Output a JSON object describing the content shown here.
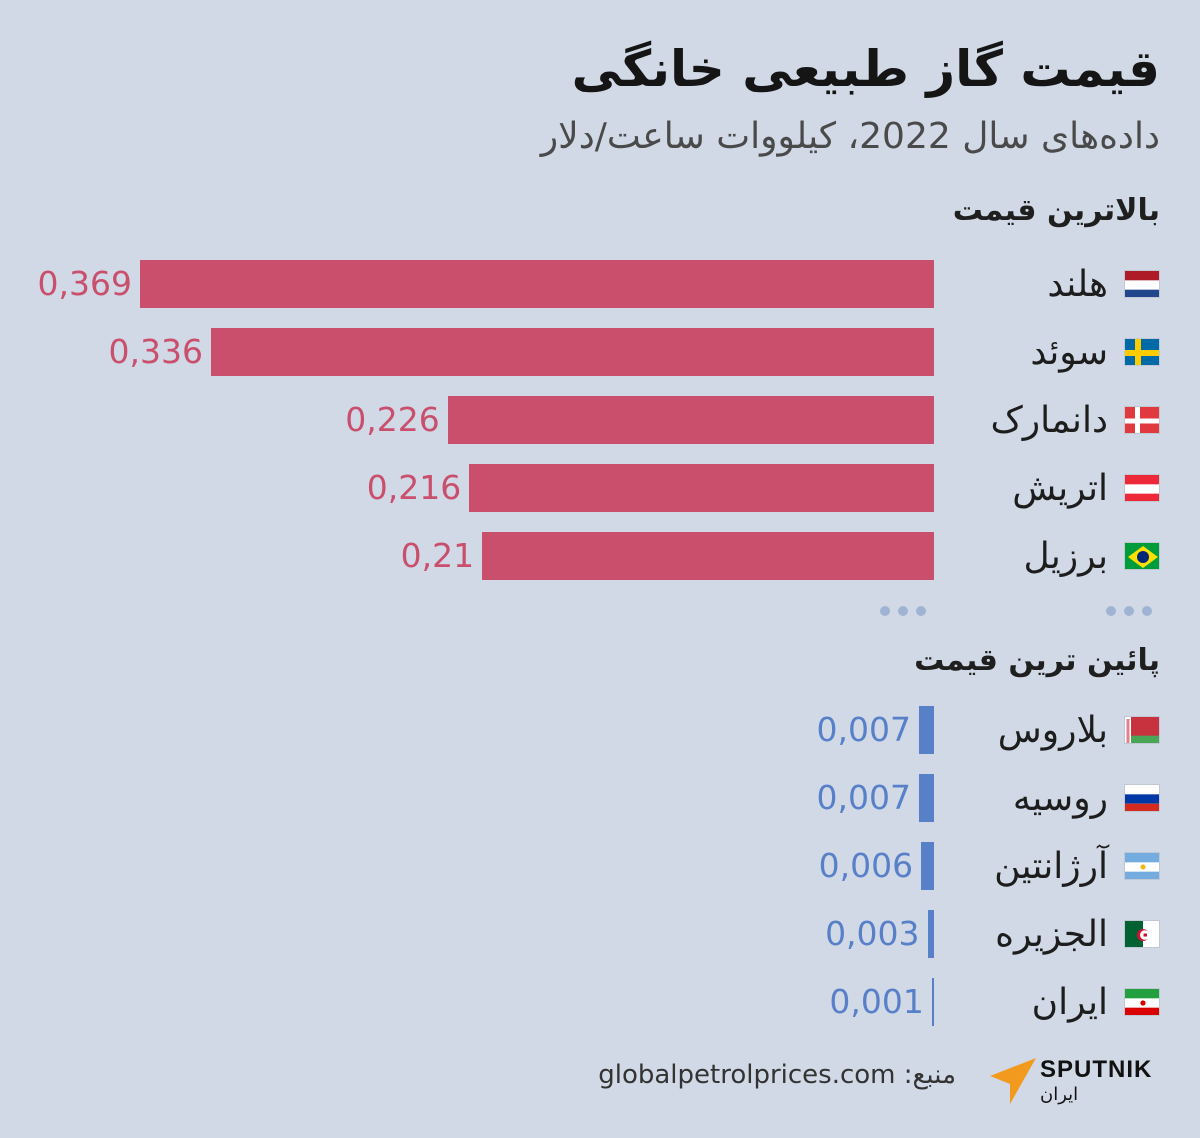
{
  "title": "قیمت گاز طبیعی خانگی",
  "subtitle": "داده‌های  سال 2022، کیلووات ساعت/دلار",
  "sections": {
    "top_label": "بالاترین قیمت",
    "bottom_label": "پائین ترین قیمت"
  },
  "chart_data": {
    "type": "bar",
    "orientation": "horizontal",
    "series": [
      {
        "name": "بالاترین قیمت",
        "color": "#c94f6d",
        "categories": [
          "هلند",
          "سوئد",
          "دانمارک",
          "اتریش",
          "برزیل"
        ],
        "values": [
          0.369,
          0.336,
          0.226,
          0.216,
          0.21
        ],
        "labels": [
          "0,369",
          "0,336",
          "0,226",
          "0,216",
          "0,21"
        ],
        "flags": [
          "netherlands-flag-icon",
          "sweden-flag-icon",
          "denmark-flag-icon",
          "austria-flag-icon",
          "brazil-flag-icon"
        ]
      },
      {
        "name": "پائین ترین قیمت",
        "color": "#5880c9",
        "categories": [
          "بلاروس",
          "روسیه",
          "آرژانتین",
          "الجزیره",
          "ایران"
        ],
        "values": [
          0.007,
          0.007,
          0.006,
          0.003,
          0.001
        ],
        "labels": [
          "0,007",
          "0,007",
          "0,006",
          "0,003",
          "0,001"
        ],
        "flags": [
          "belarus-flag-icon",
          "russia-flag-icon",
          "argentina-flag-icon",
          "algeria-flag-icon",
          "iran-flag-icon"
        ]
      }
    ]
  },
  "footer": {
    "source": "منبع:  globalpetrolprices.com",
    "logo_brand": "SPUTNIK",
    "logo_sub": "ایران"
  }
}
